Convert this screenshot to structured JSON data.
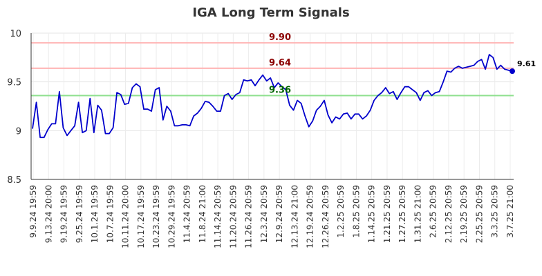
{
  "chart_data": {
    "type": "line",
    "title": "IGA Long Term Signals",
    "xlabel": "",
    "ylabel": "",
    "ylim": [
      8.5,
      10
    ],
    "y_ticks": [
      "8.5",
      "9",
      "9.5",
      "10"
    ],
    "y_tick_values": [
      8.5,
      9,
      9.5,
      10
    ],
    "grid": true,
    "x_tick_labels": [
      "9.9.24 19:59",
      "9.13.24 20:00",
      "9.19.24 19:59",
      "9.25.24 19:59",
      "10.1.24 19:59",
      "10.7.24 19:59",
      "10.11.24 20:00",
      "10.17.24 19:59",
      "10.23.24 19:59",
      "10.29.24 19:59",
      "11.4.24 20:59",
      "11.8.24 21:00",
      "11.14.24 20:59",
      "11.20.24 20:59",
      "11.26.24 20:59",
      "12.3.24 20:59",
      "12.9.24 20:59",
      "12.13.24 21:00",
      "12.19.24 20:59",
      "12.26.24 20:59",
      "1.2.25 20:59",
      "1.8.25 20:59",
      "1.14.25 20:59",
      "1.21.25 20:59",
      "1.27.25 20:59",
      "1.31.25 21:00",
      "2.6.25 20:59",
      "2.12.25 20:59",
      "2.19.25 20:59",
      "2.25.25 20:59",
      "3.3.25 20:59",
      "3.7.25 21:00"
    ],
    "series": [
      {
        "color": "#0000cc",
        "values": [
          9.02,
          9.29,
          8.93,
          8.93,
          9.01,
          9.07,
          9.07,
          9.4,
          9.03,
          8.95,
          9.0,
          9.05,
          9.29,
          8.98,
          9.0,
          9.33,
          8.98,
          9.26,
          9.21,
          8.97,
          8.97,
          9.03,
          9.39,
          9.37,
          9.27,
          9.28,
          9.44,
          9.48,
          9.45,
          9.22,
          9.22,
          9.2,
          9.42,
          9.44,
          9.11,
          9.25,
          9.2,
          9.05,
          9.05,
          9.06,
          9.06,
          9.05,
          9.15,
          9.18,
          9.23,
          9.3,
          9.29,
          9.25,
          9.2,
          9.2,
          9.36,
          9.38,
          9.32,
          9.37,
          9.39,
          9.52,
          9.51,
          9.52,
          9.46,
          9.52,
          9.57,
          9.51,
          9.54,
          9.44,
          9.49,
          9.45,
          9.42,
          9.26,
          9.21,
          9.31,
          9.28,
          9.15,
          9.04,
          9.1,
          9.21,
          9.25,
          9.31,
          9.16,
          9.08,
          9.14,
          9.12,
          9.17,
          9.18,
          9.12,
          9.17,
          9.17,
          9.12,
          9.15,
          9.21,
          9.31,
          9.36,
          9.39,
          9.44,
          9.38,
          9.4,
          9.32,
          9.39,
          9.45,
          9.45,
          9.42,
          9.39,
          9.31,
          9.39,
          9.41,
          9.36,
          9.39,
          9.4,
          9.5,
          9.61,
          9.6,
          9.64,
          9.66,
          9.64,
          9.65,
          9.66,
          9.67,
          9.71,
          9.73,
          9.63,
          9.78,
          9.75,
          9.63,
          9.67,
          9.63,
          9.62,
          9.61
        ]
      }
    ],
    "reference_lines": [
      {
        "value": 9.9,
        "label": "9.90",
        "line_color": "#ffb3b3",
        "label_color": "#8b0000"
      },
      {
        "value": 9.64,
        "label": "9.64",
        "line_color": "#ffb3b3",
        "label_color": "#8b0000"
      },
      {
        "value": 9.36,
        "label": "9.36",
        "line_color": "#8fe08f",
        "label_color": "#006400"
      }
    ],
    "last_value_label": "9.61",
    "last_point_color": "#0000cc"
  }
}
